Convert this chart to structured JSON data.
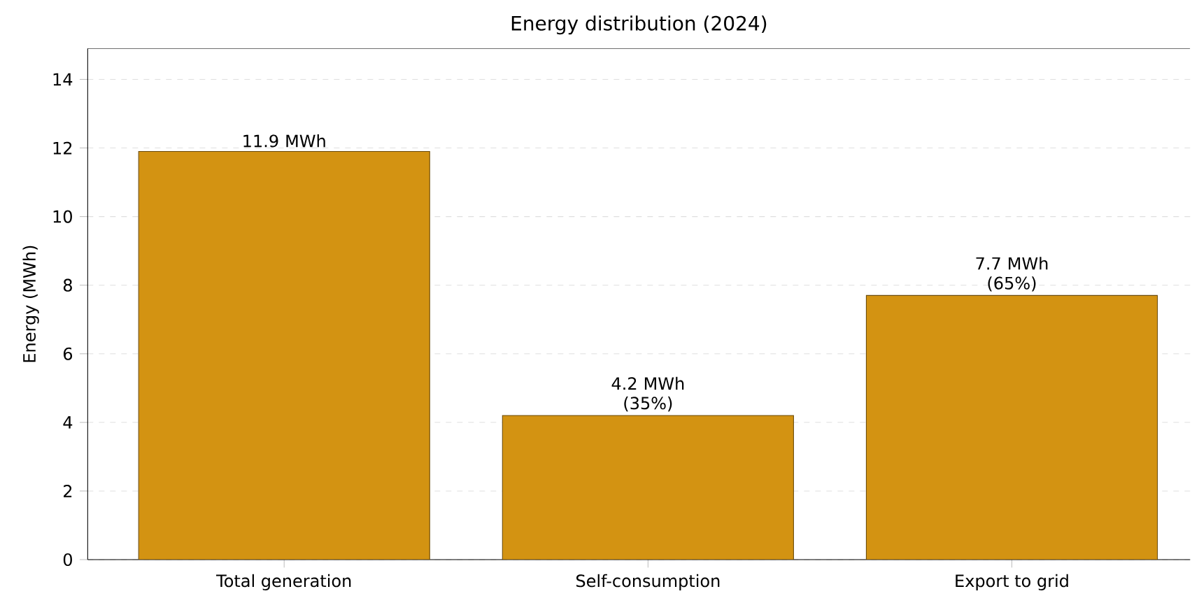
{
  "chart_data": {
    "type": "bar",
    "title": "Energy distribution (2024)",
    "ylabel": "Energy (MWh)",
    "categories": [
      "Total generation",
      "Self-consumption",
      "Export to grid"
    ],
    "values": [
      11.9,
      4.2,
      7.7
    ],
    "value_labels": [
      "11.9 MWh",
      "4.2 MWh (35%)",
      "7.7 MWh (65%)"
    ],
    "color": "#d39312",
    "ylim": [
      0,
      14.9
    ],
    "yticks": [
      0,
      2,
      4,
      6,
      8,
      10,
      12,
      14
    ],
    "grid": "y"
  }
}
